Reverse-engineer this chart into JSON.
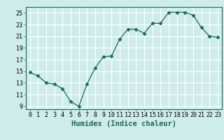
{
  "x": [
    0,
    1,
    2,
    3,
    4,
    5,
    6,
    7,
    8,
    9,
    10,
    11,
    12,
    13,
    14,
    15,
    16,
    17,
    18,
    19,
    20,
    21,
    22,
    23
  ],
  "y": [
    14.8,
    14.2,
    13.0,
    12.8,
    12.0,
    9.8,
    9.0,
    12.8,
    15.6,
    17.5,
    17.6,
    20.5,
    22.2,
    22.2,
    21.5,
    23.2,
    23.2,
    25.1,
    25.1,
    25.1,
    24.6,
    22.5,
    21.0,
    20.8
  ],
  "line_color": "#1a6b5a",
  "marker": "D",
  "marker_size": 2.5,
  "bg_color": "#ceecea",
  "grid_color": "#ffffff",
  "xlabel": "Humidex (Indice chaleur)",
  "xlabel_fontsize": 7.5,
  "tick_fontsize": 6,
  "ylim": [
    8.5,
    26
  ],
  "yticks": [
    9,
    11,
    13,
    15,
    17,
    19,
    21,
    23,
    25
  ],
  "xticks": [
    0,
    1,
    2,
    3,
    4,
    5,
    6,
    7,
    8,
    9,
    10,
    11,
    12,
    13,
    14,
    15,
    16,
    17,
    18,
    19,
    20,
    21,
    22,
    23
  ]
}
